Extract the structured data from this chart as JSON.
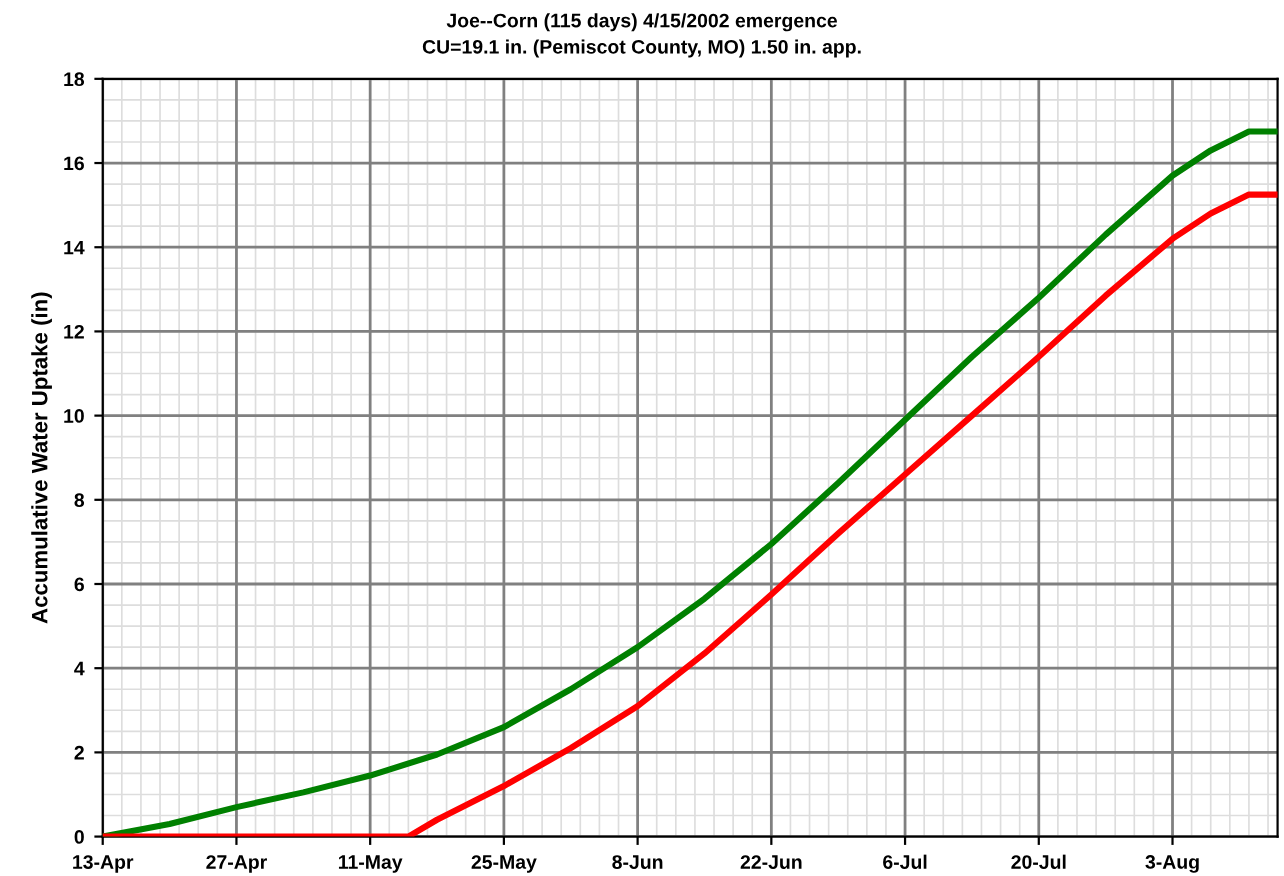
{
  "chart_data": {
    "type": "line",
    "title": "Joe--Corn (115 days) 4/15/2002 emergence",
    "subtitle": "CU=19.1 in. (Pemiscot County, MO) 1.50 in. app.",
    "ylabel": "Accumulative Water Uptake (in)",
    "xlim": [
      "2002-04-13",
      "2002-08-14"
    ],
    "xticks": [
      {
        "value": "2002-04-13",
        "label": "13-Apr"
      },
      {
        "value": "2002-04-27",
        "label": "27-Apr"
      },
      {
        "value": "2002-05-11",
        "label": "11-May"
      },
      {
        "value": "2002-05-25",
        "label": "25-May"
      },
      {
        "value": "2002-06-08",
        "label": "8-Jun"
      },
      {
        "value": "2002-06-22",
        "label": "22-Jun"
      },
      {
        "value": "2002-07-06",
        "label": "6-Jul"
      },
      {
        "value": "2002-07-20",
        "label": "20-Jul"
      },
      {
        "value": "2002-08-03",
        "label": "3-Aug"
      }
    ],
    "ylim": [
      0,
      18
    ],
    "yticks": [
      0,
      2,
      4,
      6,
      8,
      10,
      12,
      14,
      16,
      18
    ],
    "grid": true,
    "legend": false,
    "marker": "none",
    "line_style": "solid",
    "series": [
      {
        "color": "#008000",
        "x": [
          "2002-04-13",
          "2002-04-20",
          "2002-04-27",
          "2002-05-04",
          "2002-05-11",
          "2002-05-18",
          "2002-05-25",
          "2002-06-01",
          "2002-06-08",
          "2002-06-15",
          "2002-06-22",
          "2002-06-29",
          "2002-07-06",
          "2002-07-13",
          "2002-07-20",
          "2002-07-27",
          "2002-08-03",
          "2002-08-07",
          "2002-08-11",
          "2002-08-14"
        ],
        "values": [
          0,
          0.3,
          0.7,
          1.05,
          1.45,
          1.95,
          2.6,
          3.5,
          4.5,
          5.65,
          6.95,
          8.4,
          9.9,
          11.4,
          12.8,
          14.3,
          15.7,
          16.3,
          16.75,
          16.75
        ]
      },
      {
        "color": "#ff0000",
        "x": [
          "2002-04-13",
          "2002-05-15",
          "2002-05-18",
          "2002-05-25",
          "2002-06-01",
          "2002-06-08",
          "2002-06-15",
          "2002-06-22",
          "2002-06-29",
          "2002-07-06",
          "2002-07-13",
          "2002-07-20",
          "2002-07-27",
          "2002-08-03",
          "2002-08-07",
          "2002-08-11",
          "2002-08-14"
        ],
        "values": [
          0,
          0,
          0.4,
          1.2,
          2.1,
          3.1,
          4.35,
          5.75,
          7.2,
          8.6,
          10.0,
          11.4,
          12.85,
          14.2,
          14.8,
          15.25,
          15.25
        ]
      }
    ]
  }
}
